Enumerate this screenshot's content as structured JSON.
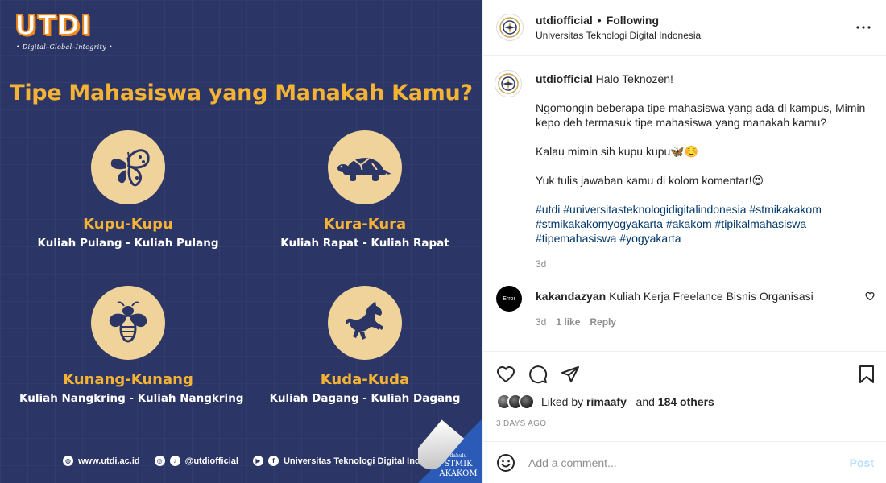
{
  "post_image": {
    "logo_text": "UTDI",
    "logo_tagline": "• Digital–Global–Integrity •",
    "headline": "Tipe Mahasiswa yang Manakah Kamu?",
    "types": [
      {
        "name": "Kupu-Kupu",
        "desc": "Kuliah Pulang - Kuliah Pulang",
        "icon": "butterfly-icon"
      },
      {
        "name": "Kura-Kura",
        "desc": "Kuliah Rapat - Kuliah Rapat",
        "icon": "turtle-icon"
      },
      {
        "name": "Kunang-Kunang",
        "desc": "Kuliah Nangkring - Kuliah Nangkring",
        "icon": "firefly-icon"
      },
      {
        "name": "Kuda-Kuda",
        "desc": "Kuliah Dagang - Kuliah Dagang",
        "icon": "horse-icon"
      }
    ],
    "footer": {
      "website": "www.utdi.ac.id",
      "social": "@utdiofficial",
      "channel": "Universitas Teknologi Digital Indonesia"
    },
    "badge": {
      "small": "dahulu",
      "line1": "STMIK",
      "line2": "AKAKOM"
    }
  },
  "header": {
    "username": "utdiofficial",
    "separator": "•",
    "follow_status": "Following",
    "subtitle": "Universitas Teknologi Digital Indonesia"
  },
  "caption": {
    "username": "utdiofficial",
    "greeting": "Halo Teknozen!",
    "p1": "Ngomongin beberapa tipe mahasiswa yang ada di kampus, Mimin kepo deh termasuk tipe mahasiswa yang manakah kamu?",
    "p2": "Kalau mimin sih kupu kupu🦋☺️",
    "p3": "Yuk tulis jawaban kamu di kolom komentar!😍",
    "hashtags": [
      "#utdi",
      "#universitasteknologidigitalindonesia",
      "#stmikakakom",
      "#stmikakakomyogyakarta",
      "#akakom",
      "#tipikalmahasiswa",
      "#tipemahasiswa",
      "#yogyakarta"
    ],
    "time": "3d"
  },
  "comment": {
    "avatar_text": "Error",
    "username": "kakandazyan",
    "text": "Kuliah Kerja Freelance Bisnis Organisasi",
    "time": "3d",
    "likes": "1 like",
    "reply": "Reply"
  },
  "likes": {
    "prefix": "Liked by",
    "user": "rimaafy_",
    "connector": "and",
    "others": "184 others"
  },
  "post_date": "3 DAYS AGO",
  "add_comment": {
    "placeholder": "Add a comment...",
    "post_label": "Post"
  }
}
